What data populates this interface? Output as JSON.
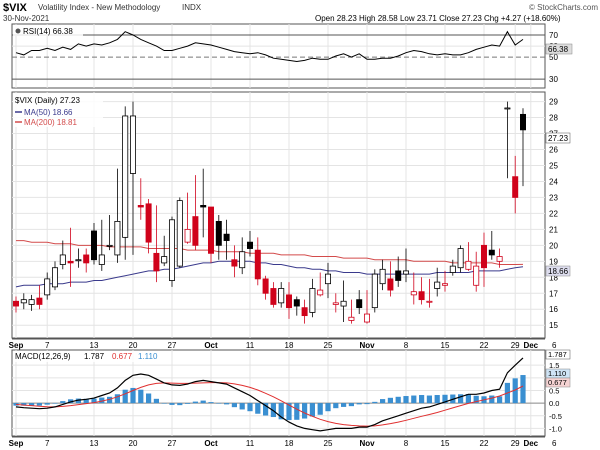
{
  "header": {
    "symbol": "$VIX",
    "name": "Volatility Index - New Methodology",
    "exchange": "INDX",
    "date": "30-Nov-2021",
    "ohlc_text": "Open 28.23  High 28.58  Low 23.71  Close 27.23  Chg +4.27 (+18.60%)",
    "watermark": "© StockCharts.com"
  },
  "x_labels": [
    {
      "d": 0,
      "t": "Sep"
    },
    {
      "d": 4,
      "t": "7"
    },
    {
      "d": 10,
      "t": "13"
    },
    {
      "d": 15,
      "t": "20"
    },
    {
      "d": 20,
      "t": "27"
    },
    {
      "d": 25,
      "t": "Oct"
    },
    {
      "d": 30,
      "t": "11"
    },
    {
      "d": 35,
      "t": "18"
    },
    {
      "d": 40,
      "t": "25"
    },
    {
      "d": 45,
      "t": "Nov"
    },
    {
      "d": 50,
      "t": "8"
    },
    {
      "d": 55,
      "t": "15"
    },
    {
      "d": 60,
      "t": "22"
    },
    {
      "d": 64,
      "t": "29"
    },
    {
      "d": 66,
      "t": "Dec"
    },
    {
      "d": 69,
      "t": "6"
    }
  ],
  "colors": {
    "up": "#ffffff",
    "down": "#d0021b",
    "ma50": "#3a3a8c",
    "ma200": "#d34b4b",
    "macd_bar": "#3a8fd1",
    "signal": "#e03030",
    "grid": "#e4e4e4"
  },
  "chart_data": [
    {
      "type": "line",
      "title": "RSI(14) 66.38",
      "legend": "top-left",
      "last_value_label": "66.38",
      "ylim": [
        22,
        80
      ],
      "y_ticks": [
        30,
        50,
        60,
        70
      ],
      "guides": [
        30,
        70
      ],
      "midline": 50,
      "series": [
        {
          "name": "RSI(14)",
          "values": [
            54,
            52,
            56,
            56,
            58,
            56,
            59,
            57,
            62,
            60,
            62,
            61,
            63,
            66,
            73,
            70,
            66,
            63,
            60,
            56,
            56,
            58,
            60,
            63,
            62,
            61,
            59,
            57,
            55,
            54,
            53,
            54,
            52,
            49,
            48,
            47,
            46,
            47,
            49,
            48,
            48,
            51,
            53,
            50,
            53,
            48,
            48,
            49,
            49,
            51,
            54,
            56,
            55,
            53,
            52,
            53,
            52,
            52,
            54,
            57,
            59,
            61,
            60,
            73,
            61,
            66
          ]
        }
      ]
    },
    {
      "type": "candlestick",
      "title": "$VIX (Daily) 27.23",
      "legend": "top-left",
      "last_value_label": "27.23",
      "ylim": [
        14.2,
        29.6
      ],
      "y_ticks": [
        15,
        16,
        17,
        18,
        19,
        20,
        21,
        22,
        23,
        24,
        25,
        26,
        27,
        28,
        29
      ],
      "x": [
        0,
        1,
        2,
        3,
        4,
        5,
        6,
        7,
        8,
        9,
        10,
        11,
        12,
        13,
        14,
        15,
        16,
        17,
        18,
        19,
        20,
        21,
        22,
        23,
        24,
        25,
        26,
        27,
        28,
        29,
        30,
        31,
        32,
        33,
        34,
        35,
        36,
        37,
        38,
        39,
        40,
        41,
        42,
        43,
        44,
        45,
        46,
        47,
        48,
        49,
        50,
        51,
        52,
        53,
        54,
        55,
        56,
        57,
        58,
        59,
        60,
        61,
        62,
        63,
        64,
        65
      ],
      "open": [
        16.5,
        16.4,
        16.3,
        16.7,
        16.9,
        17.4,
        18.8,
        19.0,
        19.1,
        19.4,
        20.9,
        18.8,
        20.0,
        19.4,
        20.5,
        24.5,
        22.5,
        22.6,
        19.5,
        18.9,
        17.8,
        18.7,
        20.2,
        21.8,
        22.5,
        22.4,
        21.5,
        20.7,
        19.1,
        18.6,
        20.2,
        19.7,
        17.9,
        17.3,
        16.4,
        16.9,
        16.6,
        16.1,
        15.8,
        16.9,
        17.6,
        16.3,
        16.2,
        15.3,
        16.6,
        15.2,
        16.1,
        17.6,
        17.9,
        18.4,
        18.2,
        16.9,
        17.1,
        16.5,
        17.3,
        17.5,
        18.3,
        18.6,
        18.5,
        17.5,
        20.0,
        19.7,
        19.0,
        28.6,
        24.3,
        28.2
      ],
      "close": [
        16.2,
        16.6,
        16.6,
        16.3,
        17.9,
        18.6,
        19.4,
        18.9,
        19.1,
        18.9,
        19.1,
        19.4,
        20.0,
        21.5,
        28.1,
        28.1,
        22.4,
        20.2,
        18.4,
        19.3,
        21.6,
        22.8,
        21.0,
        20.0,
        22.4,
        19.5,
        20.0,
        20.3,
        18.7,
        19.6,
        19.8,
        17.9,
        17.0,
        16.3,
        17.3,
        16.1,
        16.2,
        15.6,
        17.3,
        17.2,
        18.2,
        16.4,
        16.5,
        15.5,
        16.1,
        15.7,
        18.2,
        18.5,
        17.2,
        17.8,
        18.4,
        17.1,
        16.6,
        16.5,
        17.7,
        17.6,
        18.7,
        19.8,
        19.0,
        18.7,
        18.6,
        19.4,
        19.3,
        28.6,
        23.0,
        27.23
      ],
      "high": [
        16.8,
        17.0,
        16.9,
        17.5,
        18.3,
        19.0,
        20.3,
        21.1,
        19.8,
        19.8,
        21.4,
        21.6,
        21.9,
        24.8,
        28.7,
        29.0,
        24.2,
        22.9,
        22.5,
        20.6,
        21.8,
        23.0,
        23.3,
        24.4,
        24.8,
        22.4,
        21.9,
        21.6,
        20.0,
        20.5,
        20.9,
        20.5,
        18.1,
        17.7,
        17.7,
        17.7,
        16.8,
        16.6,
        17.9,
        18.3,
        18.9,
        17.0,
        17.8,
        16.6,
        17.2,
        17.2,
        18.5,
        19.1,
        19.0,
        19.3,
        19.8,
        18.3,
        18.0,
        17.9,
        18.6,
        18.4,
        19.1,
        20.0,
        20.2,
        19.6,
        20.8,
        20.9,
        19.8,
        29.0,
        25.6,
        28.58
      ],
      "low": [
        15.8,
        16.0,
        15.9,
        16.0,
        16.6,
        17.2,
        18.5,
        17.4,
        18.6,
        18.3,
        18.8,
        18.4,
        19.7,
        18.9,
        19.1,
        19.4,
        21.6,
        19.5,
        17.7,
        18.7,
        17.4,
        18.6,
        20.1,
        19.7,
        20.5,
        18.9,
        19.1,
        19.1,
        18.0,
        18.2,
        19.3,
        17.5,
        16.6,
        16.1,
        16.1,
        15.4,
        15.6,
        15.1,
        15.5,
        16.8,
        16.7,
        15.8,
        15.2,
        15.1,
        15.7,
        15.1,
        15.8,
        17.2,
        16.8,
        17.4,
        17.7,
        16.3,
        16.3,
        16.1,
        16.8,
        17.1,
        18.1,
        18.3,
        18.4,
        17.1,
        17.4,
        19.1,
        18.6,
        24.2,
        22.0,
        23.71
      ],
      "series": [
        {
          "name": "MA(50) 18.66",
          "values": [
            17.4,
            17.5,
            17.5,
            17.5,
            17.6,
            17.6,
            17.6,
            17.7,
            17.7,
            17.7,
            17.8,
            17.8,
            17.9,
            18.0,
            18.1,
            18.2,
            18.3,
            18.4,
            18.4,
            18.5,
            18.5,
            18.6,
            18.7,
            18.8,
            18.9,
            18.9,
            19.0,
            19.0,
            19.0,
            19.0,
            19.0,
            18.9,
            18.9,
            18.8,
            18.8,
            18.7,
            18.6,
            18.6,
            18.5,
            18.5,
            18.4,
            18.4,
            18.3,
            18.3,
            18.3,
            18.2,
            18.2,
            18.2,
            18.2,
            18.2,
            18.2,
            18.2,
            18.2,
            18.2,
            18.3,
            18.3,
            18.3,
            18.3,
            18.3,
            18.4,
            18.4,
            18.4,
            18.4,
            18.5,
            18.6,
            18.66
          ]
        },
        {
          "name": "MA(200) 18.81",
          "values": [
            20.3,
            20.3,
            20.2,
            20.2,
            20.2,
            20.1,
            20.1,
            20.1,
            20.0,
            20.0,
            20.0,
            20.0,
            19.9,
            19.9,
            19.9,
            19.9,
            19.9,
            19.8,
            19.8,
            19.8,
            19.8,
            19.8,
            19.7,
            19.7,
            19.7,
            19.7,
            19.6,
            19.6,
            19.6,
            19.6,
            19.5,
            19.5,
            19.5,
            19.5,
            19.4,
            19.4,
            19.4,
            19.4,
            19.3,
            19.3,
            19.3,
            19.3,
            19.2,
            19.2,
            19.2,
            19.2,
            19.1,
            19.1,
            19.1,
            19.1,
            19.1,
            19.0,
            19.0,
            19.0,
            19.0,
            19.0,
            18.9,
            18.9,
            18.9,
            18.9,
            18.9,
            18.9,
            18.8,
            18.8,
            18.8,
            18.81
          ]
        }
      ]
    },
    {
      "type": "bar",
      "title": "MACD(12,26,9)",
      "title_values": [
        "1.787",
        "0.677",
        "1.110"
      ],
      "legend": "top-left",
      "ylim": [
        -1.3,
        2.1
      ],
      "y_ticks": [
        -1.0,
        -0.5,
        0.0,
        0.5,
        1.0,
        1.5
      ],
      "last_value_labels": [
        "1.787",
        "1.110",
        "0.677"
      ],
      "series": [
        {
          "name": "MACD",
          "values": [
            -0.15,
            -0.18,
            -0.2,
            -0.22,
            -0.2,
            -0.15,
            -0.05,
            0.05,
            0.12,
            0.15,
            0.2,
            0.3,
            0.4,
            0.6,
            0.9,
            1.1,
            1.15,
            1.1,
            0.95,
            0.8,
            0.72,
            0.7,
            0.75,
            0.85,
            0.9,
            0.85,
            0.8,
            0.75,
            0.6,
            0.45,
            0.3,
            0.1,
            -0.1,
            -0.3,
            -0.55,
            -0.75,
            -0.9,
            -1.0,
            -1.05,
            -1.1,
            -1.05,
            -1.0,
            -1.0,
            -1.0,
            -0.95,
            -0.95,
            -0.85,
            -0.7,
            -0.6,
            -0.5,
            -0.4,
            -0.3,
            -0.2,
            -0.15,
            -0.05,
            0.05,
            0.15,
            0.25,
            0.35,
            0.35,
            0.4,
            0.5,
            0.55,
            1.2,
            1.5,
            1.787
          ]
        },
        {
          "name": "Signal",
          "values": [
            -0.05,
            -0.08,
            -0.1,
            -0.12,
            -0.14,
            -0.15,
            -0.13,
            -0.1,
            -0.06,
            -0.02,
            0.02,
            0.08,
            0.15,
            0.25,
            0.37,
            0.5,
            0.62,
            0.72,
            0.78,
            0.8,
            0.79,
            0.78,
            0.78,
            0.79,
            0.8,
            0.81,
            0.81,
            0.8,
            0.76,
            0.7,
            0.62,
            0.52,
            0.39,
            0.25,
            0.09,
            -0.08,
            -0.24,
            -0.39,
            -0.52,
            -0.64,
            -0.73,
            -0.8,
            -0.85,
            -0.88,
            -0.9,
            -0.91,
            -0.9,
            -0.86,
            -0.81,
            -0.75,
            -0.68,
            -0.6,
            -0.52,
            -0.45,
            -0.37,
            -0.28,
            -0.19,
            -0.1,
            -0.01,
            0.06,
            0.13,
            0.2,
            0.28,
            0.4,
            0.52,
            0.677
          ]
        },
        {
          "name": "Histogram",
          "values": [
            -0.1,
            -0.1,
            -0.1,
            -0.1,
            -0.06,
            0.0,
            0.08,
            0.15,
            0.18,
            0.17,
            0.18,
            0.22,
            0.25,
            0.35,
            0.53,
            0.6,
            0.53,
            0.38,
            0.17,
            0.0,
            -0.07,
            -0.08,
            -0.03,
            0.06,
            0.1,
            0.04,
            -0.01,
            -0.05,
            -0.16,
            -0.25,
            -0.32,
            -0.42,
            -0.49,
            -0.55,
            -0.64,
            -0.67,
            -0.66,
            -0.61,
            -0.53,
            -0.46,
            -0.32,
            -0.2,
            -0.15,
            -0.12,
            -0.05,
            -0.04,
            0.05,
            0.16,
            0.21,
            0.25,
            0.28,
            0.3,
            0.32,
            0.3,
            0.32,
            0.33,
            0.34,
            0.35,
            0.36,
            0.29,
            0.27,
            0.3,
            0.27,
            0.8,
            0.98,
            1.11
          ]
        }
      ]
    }
  ]
}
